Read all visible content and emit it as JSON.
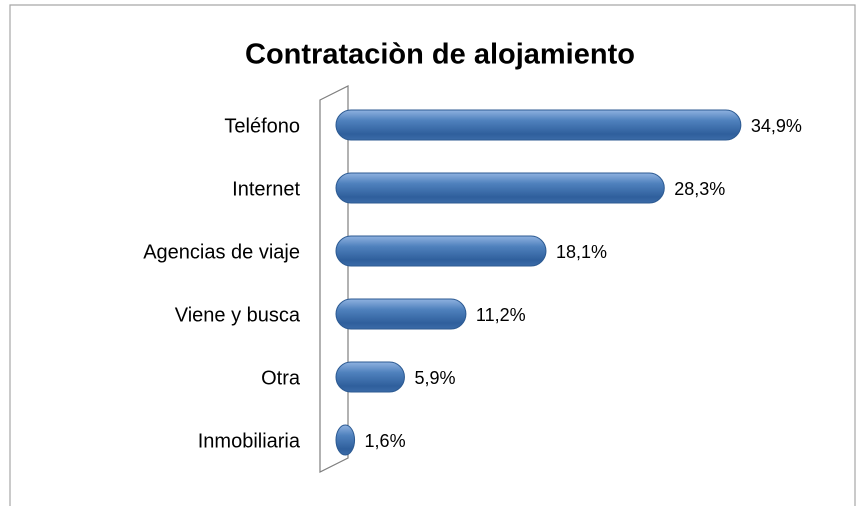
{
  "chart_data": {
    "type": "bar",
    "orientation": "horizontal",
    "title": "Contrataciòn de alojamiento",
    "categories": [
      "Teléfono",
      "Internet",
      "Agencias de viaje",
      "Viene y busca",
      "Otra",
      "Inmobiliaria"
    ],
    "values": [
      34.9,
      28.3,
      18.1,
      11.2,
      5.9,
      1.6
    ],
    "value_labels": [
      "34,9%",
      "28,3%",
      "18,1%",
      "11,2%",
      "5,9%",
      "1,6%"
    ],
    "color": "#4f81bd",
    "xlim": [
      0,
      40
    ],
    "grid": false
  }
}
